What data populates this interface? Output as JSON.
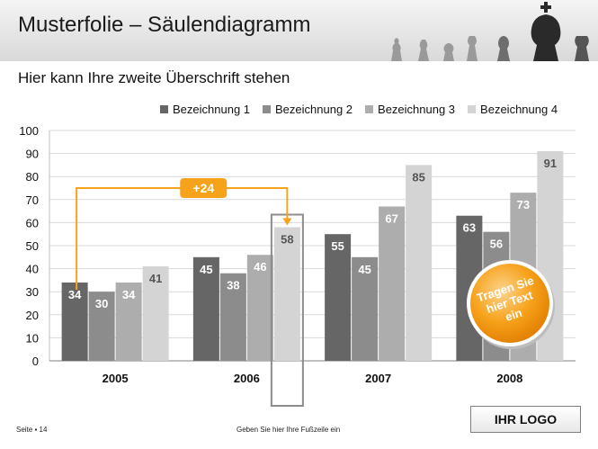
{
  "slide": {
    "title": "Musterfolie – Säulendiagramm",
    "subtitle": "Hier kann Ihre zweite Überschrift stehen",
    "footer_page": "Seite ▪ 14",
    "footer_text": "Geben Sie hier Ihre Fußzeile ein",
    "logo": "IHR LOGO",
    "callout_badge": "+24",
    "sticker_lines": [
      "Tragen Sie",
      "hier Text",
      "ein"
    ],
    "decoration": "chess-pieces-icon"
  },
  "colors": {
    "series": [
      "#666666",
      "#8c8c8c",
      "#adadad",
      "#d4d4d4"
    ],
    "label_dark_bg": "#ffffff",
    "label_light_bg": "#555555",
    "accent": "#f7a21b",
    "highlight_frame": "#8c8c8c"
  },
  "chart_data": {
    "type": "bar",
    "categories": [
      "2005",
      "2006",
      "2007",
      "2008"
    ],
    "series": [
      {
        "name": "Bezeichnung 1",
        "values": [
          34,
          45,
          55,
          63
        ]
      },
      {
        "name": "Bezeichnung 2",
        "values": [
          30,
          38,
          45,
          56
        ]
      },
      {
        "name": "Bezeichnung 3",
        "values": [
          34,
          46,
          67,
          73
        ]
      },
      {
        "name": "Bezeichnung 4",
        "values": [
          41,
          58,
          85,
          91
        ]
      }
    ],
    "ylim": [
      0,
      100
    ],
    "yticks": [
      0,
      10,
      20,
      30,
      40,
      50,
      60,
      70,
      80,
      90,
      100
    ],
    "grid": true,
    "legend": "top-right",
    "data_labels": true,
    "annotations": [
      {
        "type": "difference-arrow",
        "from_category": "2005",
        "from_series": "Bezeichnung 1",
        "to_category": "2006",
        "to_series": "Bezeichnung 4",
        "text": "+24"
      },
      {
        "type": "highlight-frame",
        "category": "2006",
        "series": "Bezeichnung 4"
      }
    ]
  }
}
